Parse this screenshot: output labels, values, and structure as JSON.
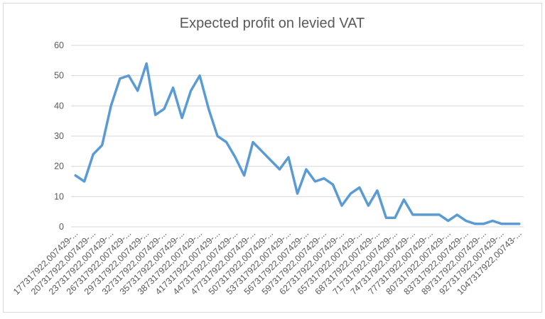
{
  "chart_data": {
    "type": "line",
    "title": "Expected profit on levied VAT",
    "xlabel": "",
    "ylabel": "",
    "ylim": [
      0,
      60
    ],
    "yticks": [
      0,
      10,
      20,
      30,
      40,
      50,
      60
    ],
    "grid": true,
    "legend": "none",
    "line_color": "#5B9BD5",
    "x_tick_labels": [
      "177317922,007429-...",
      "207317922,007429-...",
      "237317922,007429-...",
      "267317922,007429-...",
      "297317922,007429-...",
      "327317922,007429-...",
      "357317922,007429-...",
      "387317922,007429-...",
      "417317922,007429-...",
      "447317922,007429-...",
      "477317922,007429-...",
      "507317922,007429-...",
      "537317922,007429-...",
      "567317922,007429-...",
      "597317922,007429-...",
      "627317922,007429-...",
      "657317922,007429-...",
      "687317922,007429-...",
      "717317922,007429-...",
      "747317922,007429-...",
      "777317922,007429-...",
      "807317922,007429-...",
      "837317922,007429-...",
      "897317922,007429-...",
      "927317922,007429-...",
      "1047317922,00743-..."
    ],
    "values": [
      17,
      15,
      24,
      27,
      40,
      49,
      50,
      45,
      54,
      37,
      39,
      46,
      36,
      45,
      50,
      39,
      30,
      28,
      23,
      17,
      28,
      25,
      22,
      19,
      23,
      11,
      19,
      15,
      16,
      14,
      7,
      11,
      13,
      7,
      12,
      3,
      3,
      9,
      4,
      4,
      4,
      4,
      2,
      4,
      2,
      1,
      1,
      2,
      1,
      1,
      1
    ]
  }
}
